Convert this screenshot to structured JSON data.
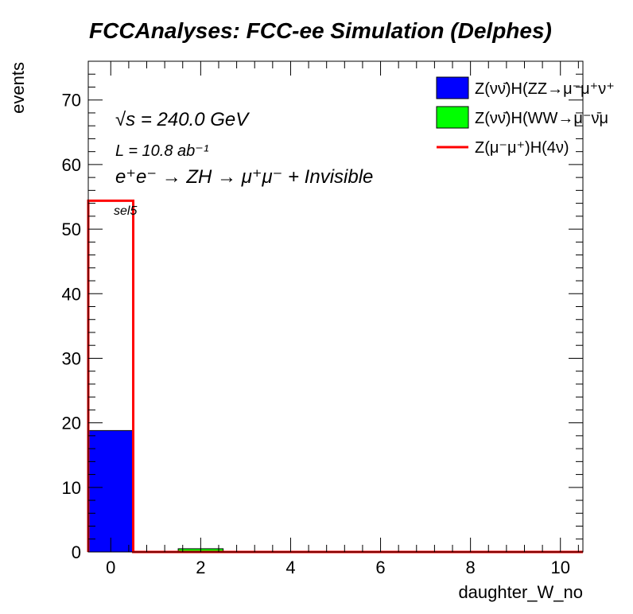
{
  "chart_data": {
    "type": "bar",
    "title": "FCCAnalyses: FCC-ee Simulation (Delphes)",
    "xlabel": "daughter_W_no",
    "ylabel": "events",
    "xlim": [
      -0.5,
      10.5
    ],
    "ylim": [
      0,
      76
    ],
    "x_ticks": [
      0,
      2,
      4,
      6,
      8,
      10
    ],
    "y_ticks": [
      0,
      10,
      20,
      30,
      40,
      50,
      60,
      70
    ],
    "bins": [
      [
        -0.5,
        0.5
      ],
      [
        0.5,
        1.5
      ],
      [
        1.5,
        2.5
      ],
      [
        2.5,
        3.5
      ],
      [
        3.5,
        4.5
      ],
      [
        4.5,
        5.5
      ],
      [
        5.5,
        6.5
      ],
      [
        6.5,
        7.5
      ],
      [
        7.5,
        8.5
      ],
      [
        8.5,
        9.5
      ],
      [
        9.5,
        10.5
      ]
    ],
    "series": [
      {
        "name": "Z(νν̄)H(ZZ→μ⁻μ⁺ν⁺",
        "style": "filled",
        "color": "#0000ff",
        "values": [
          18.8,
          0,
          0,
          0,
          0,
          0,
          0,
          0,
          0,
          0,
          0
        ]
      },
      {
        "name": "Z(νν̄)H(WW→μ⁻ν̄μ",
        "style": "filled",
        "color": "#00ff00",
        "values": [
          0,
          0,
          0.5,
          0,
          0,
          0,
          0,
          0,
          0,
          0,
          0
        ]
      },
      {
        "name": "Z(μ⁻μ⁺)H(4ν)",
        "style": "line",
        "color": "#ff0000",
        "values": [
          54.4,
          0,
          0,
          0,
          0,
          0,
          0,
          0,
          0,
          0,
          0
        ]
      }
    ],
    "annotations": {
      "sqrt_s": "√s = 240.0 GeV",
      "lumi": "L = 10.8 ab⁻¹",
      "process": "e⁺e⁻ → ZH → μ⁺μ⁻ + Invisible",
      "selection": "sel5"
    },
    "legend_position": "top-right",
    "grid": false
  }
}
